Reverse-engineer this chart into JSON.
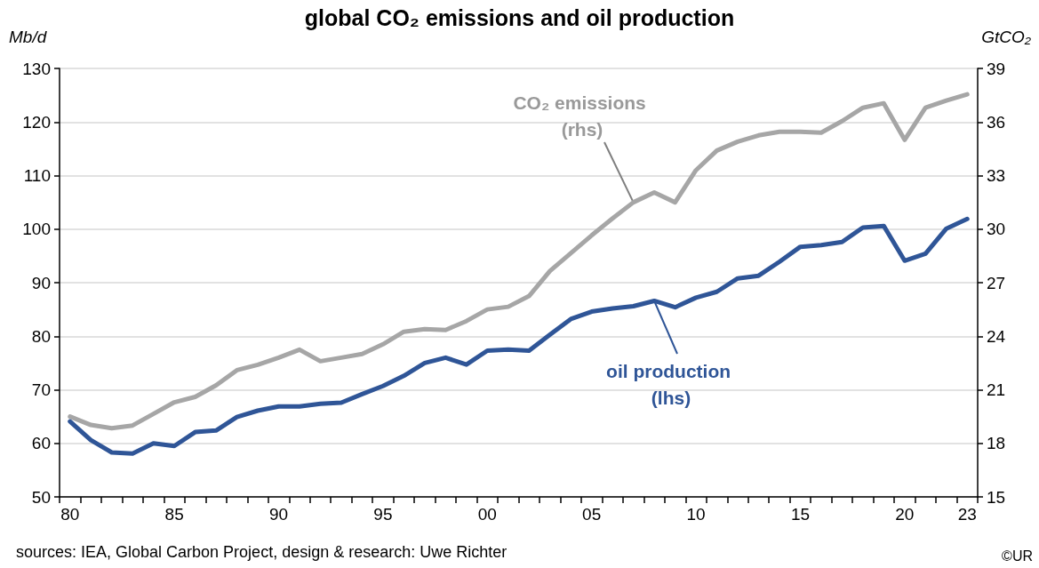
{
  "chart_data": {
    "type": "line",
    "title": "global CO₂ emissions and oil production",
    "ylabel": "Mb/d",
    "y2label": "GtCO₂",
    "categories": [
      "80",
      null,
      null,
      null,
      null,
      "85",
      null,
      null,
      null,
      null,
      "90",
      null,
      null,
      null,
      null,
      "95",
      null,
      null,
      null,
      null,
      "00",
      null,
      null,
      null,
      null,
      "05",
      null,
      null,
      null,
      null,
      "10",
      null,
      null,
      null,
      null,
      "15",
      null,
      null,
      null,
      null,
      "20",
      null,
      null,
      "23"
    ],
    "series": [
      {
        "name": "CO₂ emissions (rhs)",
        "color": "#a6a6a6",
        "axis": "y2",
        "values": [
          19.5,
          19.03,
          18.85,
          19.0,
          19.65,
          20.3,
          20.6,
          21.25,
          22.1,
          22.4,
          22.8,
          23.25,
          22.6,
          22.8,
          23.0,
          23.55,
          24.25,
          24.4,
          24.35,
          24.85,
          25.5,
          25.65,
          26.25,
          27.65,
          28.65,
          29.65,
          30.6,
          31.5,
          32.05,
          31.5,
          33.3,
          34.4,
          34.9,
          35.25,
          35.45,
          35.45,
          35.4,
          36.05,
          36.8,
          37.05,
          35.0,
          36.8,
          37.2,
          37.55
        ]
      },
      {
        "name": "oil production (lhs)",
        "color": "#2f5597",
        "values": [
          64.1,
          60.6,
          58.3,
          58.1,
          60.0,
          59.5,
          62.1,
          62.4,
          64.9,
          66.1,
          66.9,
          66.9,
          67.4,
          67.6,
          69.2,
          70.7,
          72.6,
          75.0,
          76.0,
          74.7,
          77.3,
          77.5,
          77.3,
          80.3,
          83.2,
          84.6,
          85.2,
          85.6,
          86.6,
          85.4,
          87.2,
          88.3,
          90.8,
          91.3,
          93.9,
          96.7,
          97.0,
          97.6,
          100.3,
          100.6,
          94.1,
          95.4,
          100.1,
          101.9
        ]
      }
    ],
    "ylim": [
      50,
      130
    ],
    "yticks": [
      50,
      60,
      70,
      80,
      90,
      100,
      110,
      120,
      130
    ],
    "y2lim": [
      15,
      39
    ],
    "y2ticks": [
      15,
      18,
      21,
      24,
      27,
      30,
      33,
      36,
      39
    ],
    "grid": "y",
    "legend": false,
    "marker": "none",
    "line_style": "solid",
    "annotations": [
      "sources: IEA, Global Carbon Project, design & research: Uwe Richter",
      "©UR"
    ]
  }
}
